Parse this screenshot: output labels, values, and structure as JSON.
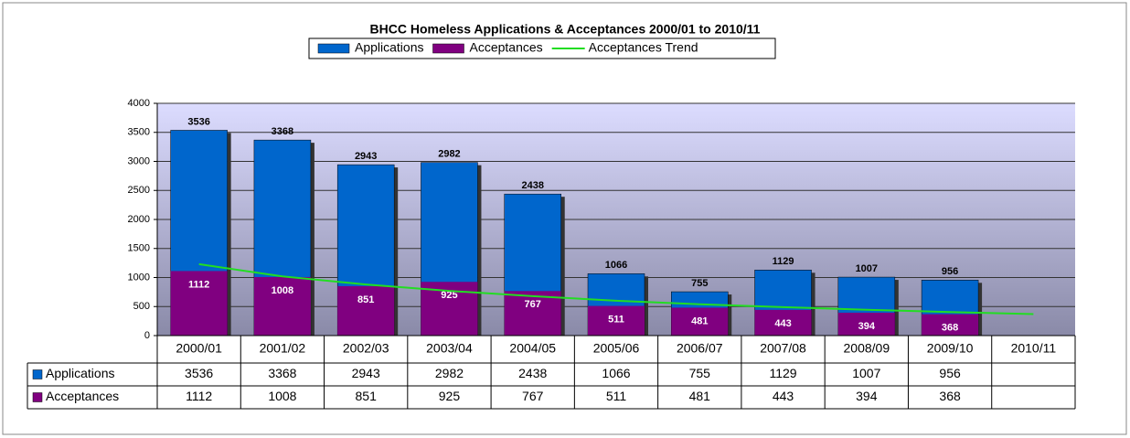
{
  "chart_data": {
    "type": "bar",
    "title": "BHCC Homeless Applications & Acceptances 2000/01 to 2010/11",
    "categories": [
      "2000/01",
      "2001/02",
      "2002/03",
      "2003/04",
      "2004/05",
      "2005/06",
      "2006/07",
      "2007/08",
      "2008/09",
      "2009/10",
      "2010/11"
    ],
    "series": [
      {
        "name": "Applications",
        "color": "#0066cc",
        "type": "bar",
        "values": [
          3536,
          3368,
          2943,
          2982,
          2438,
          1066,
          755,
          1129,
          1007,
          956,
          null
        ]
      },
      {
        "name": "Acceptances",
        "color": "#800080",
        "type": "bar",
        "values": [
          1112,
          1008,
          851,
          925,
          767,
          511,
          481,
          443,
          394,
          368,
          null
        ]
      },
      {
        "name": "Acceptances Trend",
        "color": "#22dd22",
        "type": "line",
        "values": [
          1230,
          1020,
          880,
          770,
          680,
          600,
          540,
          490,
          445,
          405,
          370
        ]
      }
    ],
    "ylim": [
      0,
      4000
    ],
    "yticks": [
      0,
      500,
      1000,
      1500,
      2000,
      2500,
      3000,
      3500,
      4000
    ],
    "grid": true,
    "data_table": true
  }
}
